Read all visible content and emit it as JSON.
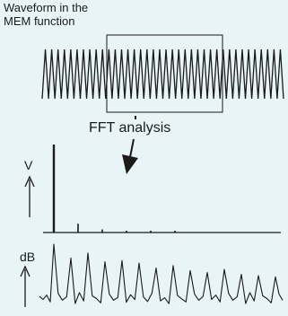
{
  "title": {
    "line1": "Waveform in the",
    "line2": "MEM function"
  },
  "fft_label": "FFT analysis",
  "spectrum_v": {
    "unit_label": "V",
    "peaks": [
      1.0,
      0.1,
      0.035,
      0.018,
      0.01,
      0.007
    ]
  },
  "spectrum_db": {
    "unit_label": "dB",
    "peaks": [
      1.0,
      0.78,
      0.86,
      0.72,
      0.74,
      0.7,
      0.62,
      0.66,
      0.58,
      0.55,
      0.6,
      0.52,
      0.5,
      0.48,
      0.45
    ],
    "noise": [
      0.22,
      0.35,
      0.15,
      0.4,
      0.2,
      0.3,
      0.1,
      0.42,
      0.18,
      0.33,
      0.25,
      0.12,
      0.38,
      0.2,
      0.28,
      0.14,
      0.36,
      0.22,
      0.3,
      0.16,
      0.4,
      0.18,
      0.27,
      0.1,
      0.34,
      0.24,
      0.15,
      0.38,
      0.2,
      0.31
    ]
  },
  "colors": {
    "stroke": "#1a1a1a",
    "background": "#e8f4f6"
  },
  "icons": [
    "arrow-down-icon",
    "arrow-up-icon"
  ]
}
